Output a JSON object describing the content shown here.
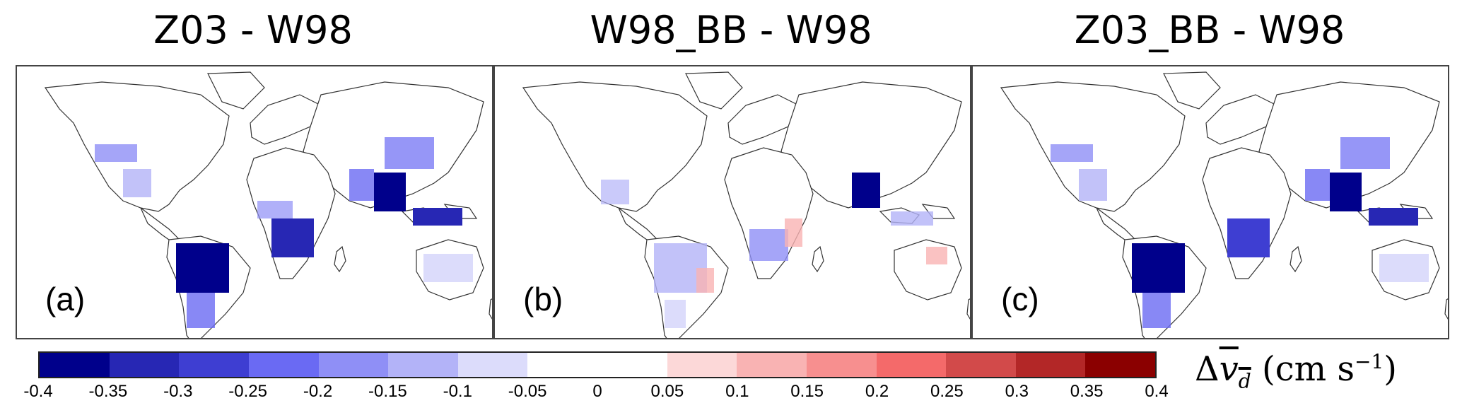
{
  "panels": [
    {
      "title": "Z03 - W98",
      "label": "(a)"
    },
    {
      "title": "W98_BB - W98",
      "label": "(b)"
    },
    {
      "title": "Z03_BB - W98",
      "label": "(c)"
    }
  ],
  "colorbar": {
    "colors": [
      "#00008b",
      "#2727b4",
      "#3e3ed2",
      "#6a6af3",
      "#8f8ff6",
      "#b3b3f8",
      "#dcdcfb",
      "#ffffff",
      "#ffffff",
      "#fcd8d8",
      "#f9b3b3",
      "#f78f8f",
      "#f46a6a",
      "#d24a4a",
      "#b32727",
      "#8b0000"
    ],
    "ticks": [
      "-0.4",
      "-0.35",
      "-0.3",
      "-0.25",
      "-0.2",
      "-0.15",
      "-0.1",
      "-0.05",
      "0",
      "0.05",
      "0.1",
      "0.15",
      "0.2",
      "0.25",
      "0.3",
      "0.35",
      "0.4"
    ],
    "label_prefix": "Δ",
    "label_var": "v",
    "label_sub": "d",
    "label_units": " (cm s",
    "label_exp": "−1",
    "label_close": ")"
  },
  "map_colors": {
    "coast": "#333333",
    "strong_blue": "#00008b",
    "mid_blue": "#4b4be0",
    "light_blue": "#aab0f5",
    "faint_blue": "#dfe1fc",
    "faint_red": "#f8c8c8"
  }
}
